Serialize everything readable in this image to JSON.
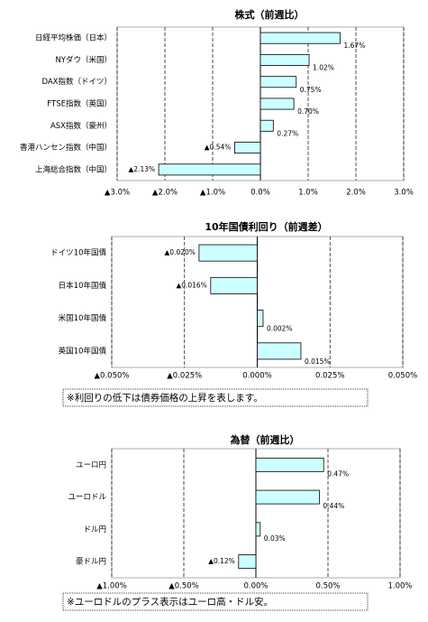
{
  "chart_data": [
    {
      "type": "hbar",
      "title": "株式（前週比）",
      "categories": [
        "日経平均株価（日本）",
        "NYダウ（米国）",
        "DAX指数（ドイツ）",
        "FTSE指数（英国）",
        "ASX指数（豪州）",
        "香港ハンセン指数（中国）",
        "上海総合指数（中国）"
      ],
      "values": [
        1.67,
        1.02,
        0.75,
        0.7,
        0.27,
        -0.54,
        -2.13
      ],
      "value_labels": [
        "1.67%",
        "1.02%",
        "0.75%",
        "0.70%",
        "0.27%",
        "▲0.54%",
        "▲2.13%"
      ],
      "xlim": [
        -3.0,
        3.0
      ],
      "xticks": [
        {
          "value": -3.0,
          "label": "▲3.0%"
        },
        {
          "value": -2.0,
          "label": "▲2.0%"
        },
        {
          "value": -1.0,
          "label": "▲1.0%"
        },
        {
          "value": 0,
          "label": "0.0%"
        },
        {
          "value": 1.0,
          "label": "1.0%"
        },
        {
          "value": 2.0,
          "label": "2.0%"
        },
        {
          "value": 3.0,
          "label": "3.0%"
        }
      ],
      "color": "#ccffff",
      "negative_color": "#ff0000",
      "grid": true
    },
    {
      "type": "hbar",
      "title": "10年国債利回り（前週差）",
      "categories": [
        "ドイツ10年国債",
        "日本10年国債",
        "米国10年国債",
        "英国10年国債"
      ],
      "values": [
        -0.02,
        -0.016,
        0.002,
        0.015
      ],
      "value_labels": [
        "▲0.020%",
        "▲0.016%",
        "0.002%",
        "0.015%"
      ],
      "xlim": [
        -0.05,
        0.05
      ],
      "xticks": [
        {
          "value": -0.05,
          "label": "▲0.050%"
        },
        {
          "value": -0.025,
          "label": "▲0.025%"
        },
        {
          "value": 0,
          "label": "0.000%"
        },
        {
          "value": 0.025,
          "label": "0.025%"
        },
        {
          "value": 0.05,
          "label": "0.050%"
        }
      ],
      "color": "#ccffff",
      "negative_color": "#ff0000",
      "grid": true,
      "note": "※利回りの低下は債券価格の上昇を表します。"
    },
    {
      "type": "hbar",
      "title": "為替（前週比）",
      "categories": [
        "ユーロ円",
        "ユーロドル",
        "ドル円",
        "豪ドル円"
      ],
      "values": [
        0.47,
        0.44,
        0.03,
        -0.12
      ],
      "value_labels": [
        "0.47%",
        "0.44%",
        "0.03%",
        "▲0.12%"
      ],
      "xlim": [
        -1.0,
        1.0
      ],
      "xticks": [
        {
          "value": -1.0,
          "label": "▲1.00%"
        },
        {
          "value": -0.5,
          "label": "▲0.50%"
        },
        {
          "value": 0,
          "label": "0.00%"
        },
        {
          "value": 0.5,
          "label": "0.50%"
        },
        {
          "value": 1.0,
          "label": "1.00%"
        }
      ],
      "color": "#ccffff",
      "negative_color": "#ff0000",
      "grid": true,
      "note": "※ユーロドルのプラス表示はユーロ高・ドル安。"
    }
  ]
}
